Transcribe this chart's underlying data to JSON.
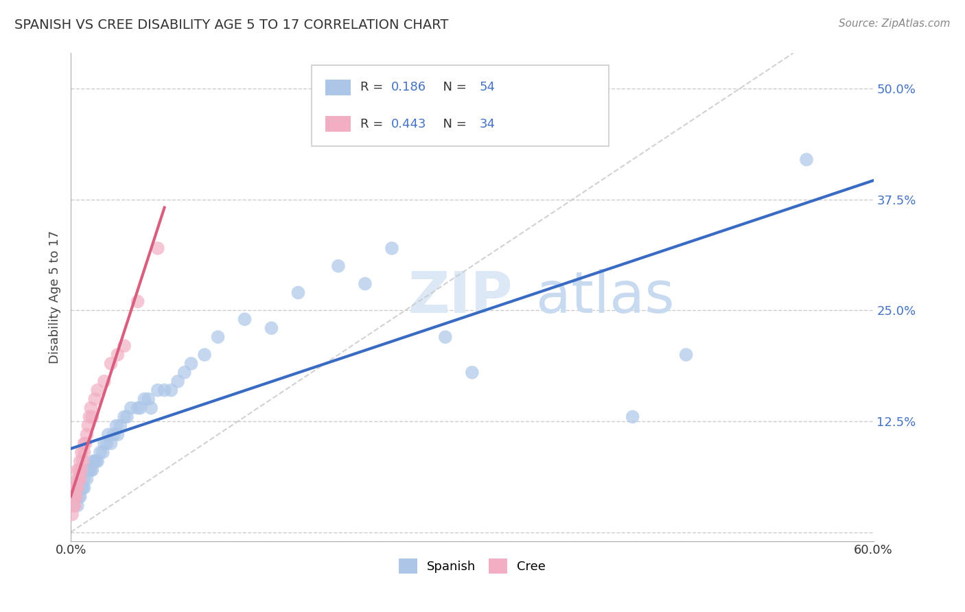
{
  "title": "SPANISH VS CREE DISABILITY AGE 5 TO 17 CORRELATION CHART",
  "source": "Source: ZipAtlas.com",
  "ylabel_label": "Disability Age 5 to 17",
  "xlim": [
    0.0,
    0.6
  ],
  "ylim": [
    -0.01,
    0.54
  ],
  "xtick_vals": [
    0.0,
    0.1,
    0.2,
    0.3,
    0.4,
    0.5,
    0.6
  ],
  "xtick_labels": [
    "0.0%",
    "",
    "",
    "",
    "",
    "",
    "60.0%"
  ],
  "ytick_vals": [
    0.0,
    0.125,
    0.25,
    0.375,
    0.5
  ],
  "ytick_labels": [
    "",
    "12.5%",
    "25.0%",
    "37.5%",
    "50.0%"
  ],
  "spanish_color": "#adc6e8",
  "cree_color": "#f2afc3",
  "spanish_line_color": "#3a6bc4",
  "cree_line_color": "#d95f7f",
  "ref_line_color": "#cccccc",
  "background_color": "#ffffff",
  "legend_box_color": "#f0f0f0",
  "legend_text_color": "#4472c4",
  "watermark_color": "#dce8f5",
  "spanish_x": [
    0.005,
    0.006,
    0.007,
    0.008,
    0.009,
    0.01,
    0.01,
    0.01,
    0.012,
    0.013,
    0.014,
    0.015,
    0.016,
    0.017,
    0.018,
    0.019,
    0.02,
    0.022,
    0.024,
    0.025,
    0.027,
    0.028,
    0.03,
    0.032,
    0.034,
    0.035,
    0.037,
    0.04,
    0.042,
    0.045,
    0.05,
    0.052,
    0.055,
    0.058,
    0.06,
    0.065,
    0.07,
    0.075,
    0.08,
    0.085,
    0.09,
    0.1,
    0.11,
    0.13,
    0.15,
    0.17,
    0.2,
    0.22,
    0.24,
    0.28,
    0.3,
    0.42,
    0.46,
    0.55
  ],
  "spanish_y": [
    0.03,
    0.04,
    0.04,
    0.05,
    0.05,
    0.05,
    0.06,
    0.07,
    0.06,
    0.07,
    0.07,
    0.07,
    0.07,
    0.08,
    0.08,
    0.08,
    0.08,
    0.09,
    0.09,
    0.1,
    0.1,
    0.11,
    0.1,
    0.11,
    0.12,
    0.11,
    0.12,
    0.13,
    0.13,
    0.14,
    0.14,
    0.14,
    0.15,
    0.15,
    0.14,
    0.16,
    0.16,
    0.16,
    0.17,
    0.18,
    0.19,
    0.2,
    0.22,
    0.24,
    0.23,
    0.27,
    0.3,
    0.28,
    0.32,
    0.22,
    0.18,
    0.13,
    0.2,
    0.42
  ],
  "cree_x": [
    0.001,
    0.002,
    0.002,
    0.003,
    0.003,
    0.003,
    0.004,
    0.004,
    0.005,
    0.005,
    0.005,
    0.006,
    0.006,
    0.007,
    0.007,
    0.008,
    0.008,
    0.009,
    0.01,
    0.01,
    0.011,
    0.012,
    0.013,
    0.014,
    0.015,
    0.016,
    0.018,
    0.02,
    0.025,
    0.03,
    0.035,
    0.04,
    0.05,
    0.065
  ],
  "cree_y": [
    0.02,
    0.03,
    0.04,
    0.03,
    0.04,
    0.05,
    0.04,
    0.05,
    0.05,
    0.06,
    0.07,
    0.06,
    0.07,
    0.06,
    0.08,
    0.07,
    0.09,
    0.08,
    0.09,
    0.1,
    0.1,
    0.11,
    0.12,
    0.13,
    0.14,
    0.13,
    0.15,
    0.16,
    0.17,
    0.19,
    0.2,
    0.21,
    0.26,
    0.32
  ],
  "spanish_line_x0": 0.0,
  "spanish_line_x1": 0.6,
  "cree_line_x0": 0.0,
  "cree_line_x1": 0.07
}
